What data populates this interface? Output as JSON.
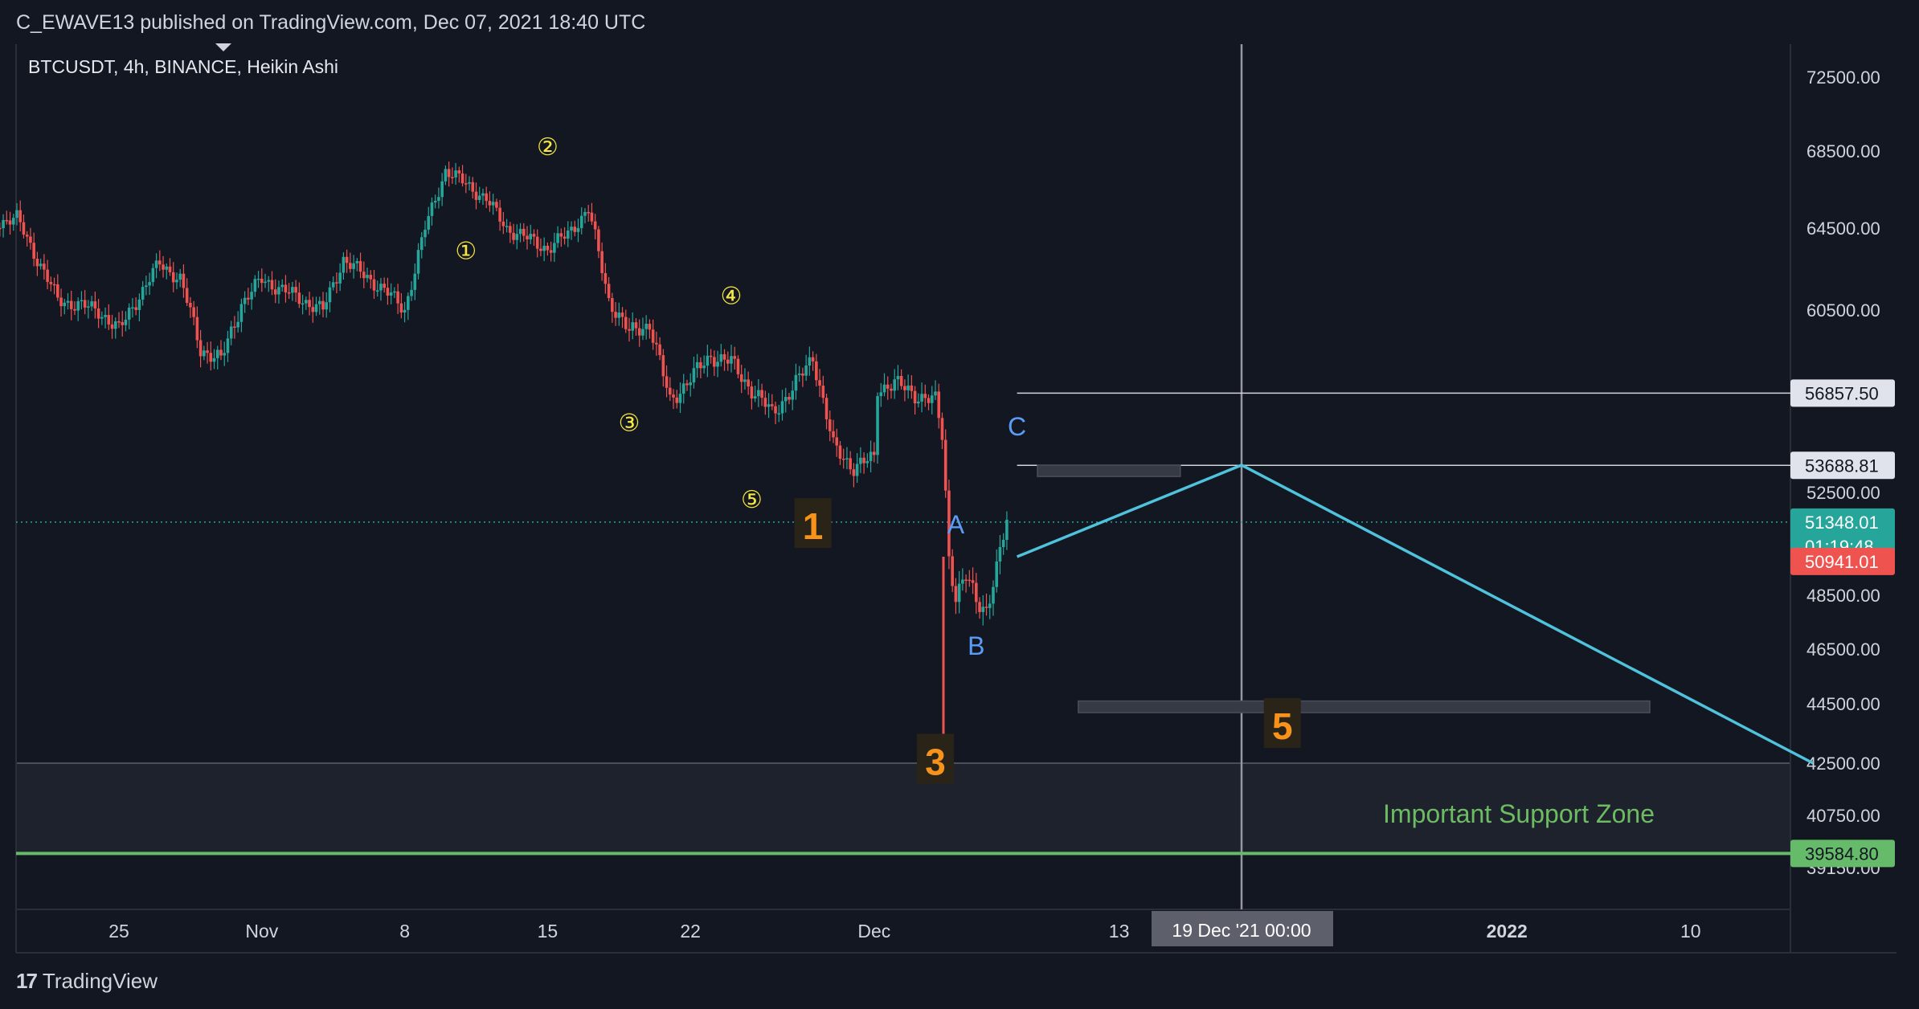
{
  "header": {
    "publisher": "C_EWAVE13 published on TradingView.com, Dec 07, 2021 18:40 UTC",
    "symbol": "BTCUSDT, 4h, BINANCE, Heikin Ashi"
  },
  "footer": {
    "logo_mark": "17",
    "logo_text": "TradingView"
  },
  "colors": {
    "background": "#131722",
    "up_candle": "#26a69a",
    "down_candle": "#ef5350",
    "projection_line": "#4fc3dc",
    "support_line": "#66bb6a",
    "wave_minor": "#f5e642",
    "wave_major": "#f7931a",
    "abc_label": "#5b9cf6"
  },
  "chart_data": {
    "type": "candlestick",
    "style": "Heikin Ashi",
    "symbol": "BTCUSDT",
    "interval": "4h",
    "exchange": "BINANCE",
    "ylim": [
      38400,
      73600
    ],
    "y_ticks": [
      "72500.00",
      "68500.00",
      "64500.00",
      "60500.00",
      "52500.00",
      "48500.00",
      "46500.00",
      "44500.00",
      "42500.00",
      "40750.00",
      "39150.00"
    ],
    "x_ticks": [
      {
        "label": "25",
        "date": "2021-10-25"
      },
      {
        "label": "Nov",
        "date": "2021-11-01"
      },
      {
        "label": "8",
        "date": "2021-11-08"
      },
      {
        "label": "15",
        "date": "2021-11-15"
      },
      {
        "label": "22",
        "date": "2021-11-22"
      },
      {
        "label": "Dec",
        "date": "2021-12-01"
      },
      {
        "label": "13",
        "date": "2021-12-13"
      },
      {
        "label": "2022",
        "date": "2022-01-01"
      },
      {
        "label": "10",
        "date": "2022-01-10"
      }
    ],
    "price_path": [
      {
        "date": "2021-10-18",
        "price": 62500
      },
      {
        "date": "2021-10-19",
        "price": 64800
      },
      {
        "date": "2021-10-20",
        "price": 65000
      },
      {
        "date": "2021-10-22",
        "price": 61000
      },
      {
        "date": "2021-10-24",
        "price": 60500
      },
      {
        "date": "2021-10-25",
        "price": 59600
      },
      {
        "date": "2021-10-27",
        "price": 62800
      },
      {
        "date": "2021-10-28",
        "price": 62000
      },
      {
        "date": "2021-10-29",
        "price": 58800
      },
      {
        "date": "2021-10-30",
        "price": 58300
      },
      {
        "date": "2021-10-31",
        "price": 60800
      },
      {
        "date": "2021-11-01",
        "price": 62000
      },
      {
        "date": "2021-11-03",
        "price": 61000
      },
      {
        "date": "2021-11-04",
        "price": 60500
      },
      {
        "date": "2021-11-05",
        "price": 63000
      },
      {
        "date": "2021-11-06",
        "price": 62200
      },
      {
        "date": "2021-11-07",
        "price": 61500
      },
      {
        "date": "2021-11-08",
        "price": 60500
      },
      {
        "date": "2021-11-09",
        "price": 64500
      },
      {
        "date": "2021-11-10",
        "price": 67500
      },
      {
        "date": "2021-11-11",
        "price": 66800
      },
      {
        "date": "2021-11-12",
        "price": 66000
      },
      {
        "date": "2021-11-13",
        "price": 64500
      },
      {
        "date": "2021-11-15",
        "price": 63500
      },
      {
        "date": "2021-11-16",
        "price": 64200
      },
      {
        "date": "2021-11-17",
        "price": 65500
      },
      {
        "date": "2021-11-18",
        "price": 61000
      },
      {
        "date": "2021-11-19",
        "price": 59500
      },
      {
        "date": "2021-11-20",
        "price": 59900
      },
      {
        "date": "2021-11-21",
        "price": 56500
      },
      {
        "date": "2021-11-22",
        "price": 57500
      },
      {
        "date": "2021-11-23",
        "price": 58500
      },
      {
        "date": "2021-11-24",
        "price": 58200
      },
      {
        "date": "2021-11-25",
        "price": 57000
      },
      {
        "date": "2021-11-26",
        "price": 56000
      },
      {
        "date": "2021-11-27",
        "price": 57000
      },
      {
        "date": "2021-11-28",
        "price": 58500
      },
      {
        "date": "2021-11-29",
        "price": 54500
      },
      {
        "date": "2021-11-30",
        "price": 53600
      },
      {
        "date": "2021-11-31",
        "price": 54000
      },
      {
        "date": "2021-12-01",
        "price": 57000
      },
      {
        "date": "2021-12-02",
        "price": 57300
      },
      {
        "date": "2021-12-03",
        "price": 56800
      },
      {
        "date": "2021-12-04",
        "price": 56500
      },
      {
        "date": "2021-12-04",
        "price": 55000
      },
      {
        "date": "2021-12-04",
        "price": 50000
      },
      {
        "date": "2021-12-05",
        "price": 48500
      },
      {
        "date": "2021-12-05",
        "price": 49200
      },
      {
        "date": "2021-12-06",
        "price": 48300
      },
      {
        "date": "2021-12-06",
        "price": 48000
      },
      {
        "date": "2021-12-07",
        "price": 49500
      },
      {
        "date": "2021-12-07",
        "price": 51348
      }
    ],
    "candle_colors": [
      "up",
      "up",
      "down",
      "down",
      "down",
      "up",
      "up",
      "down",
      "down",
      "up",
      "up",
      "down",
      "down",
      "up",
      "down",
      "down",
      "down",
      "up",
      "up",
      "down",
      "down",
      "down",
      "down",
      "up",
      "up",
      "down",
      "down",
      "up",
      "down",
      "up",
      "up",
      "down",
      "down",
      "down",
      "up",
      "up",
      "down",
      "down",
      "up",
      "up",
      "up",
      "down",
      "down",
      "down",
      "down",
      "down",
      "down",
      "up",
      "down",
      "down",
      "up",
      "up"
    ],
    "price_labels": [
      {
        "value": "56857.50",
        "price": 56857.5,
        "style": "level"
      },
      {
        "value": "53688.81",
        "price": 53688.81,
        "style": "level"
      },
      {
        "value": "51348.01",
        "countdown": "01:19:48",
        "price": 51348.01,
        "style": "current"
      },
      {
        "value": "50941.01",
        "price": 50941.01,
        "style": "open"
      },
      {
        "value": "39584.80",
        "price": 39584.8,
        "style": "support"
      }
    ],
    "horizontal_levels": [
      {
        "name": "resistance-level-1",
        "price": 56857.5,
        "from": "2021-12-08",
        "to": "2022-01-14"
      },
      {
        "name": "resistance-level-2",
        "price": 53688.81,
        "from": "2021-12-08",
        "to": "2022-01-14"
      },
      {
        "name": "support-line",
        "price": 39584.8,
        "from": "2021-10-18",
        "to": "2022-01-14"
      },
      {
        "name": "current-price-line",
        "price": 51348.01,
        "style": "dotted"
      }
    ],
    "zones": [
      {
        "name": "support-zone",
        "label": "Important Support Zone",
        "top": 42500,
        "bottom": 39584.8
      },
      {
        "name": "c-target-box",
        "top": 53700,
        "bottom": 53200,
        "from": "2021-12-09",
        "to": "2021-12-16"
      },
      {
        "name": "wave5-target-box",
        "top": 44600,
        "bottom": 44200,
        "from": "2021-12-11",
        "to": "2022-01-08"
      }
    ],
    "projection": [
      {
        "date": "2021-12-08",
        "price": 50000
      },
      {
        "date": "2021-12-19",
        "price": 53700
      },
      {
        "date": "2022-01-16",
        "price": 42500
      }
    ],
    "vertical_marker": {
      "date": "2021-12-19",
      "label": "19 Dec '21   00:00"
    },
    "wave_labels": [
      {
        "text": "①",
        "date": "2021-11-11",
        "price": 63000,
        "kind": "minor"
      },
      {
        "text": "②",
        "date": "2021-11-15",
        "price": 68300,
        "kind": "minor"
      },
      {
        "text": "③",
        "date": "2021-11-19",
        "price": 55200,
        "kind": "minor"
      },
      {
        "text": "④",
        "date": "2021-11-24",
        "price": 60800,
        "kind": "minor"
      },
      {
        "text": "⑤",
        "date": "2021-11-25",
        "price": 51900,
        "kind": "minor"
      },
      {
        "text": "1",
        "date": "2021-11-28",
        "price": 50900,
        "kind": "major"
      },
      {
        "text": "3",
        "date": "2021-12-04",
        "price": 42300,
        "kind": "major"
      },
      {
        "text": "5",
        "date": "2021-12-21",
        "price": 43500,
        "kind": "major"
      },
      {
        "text": "A",
        "date": "2021-12-05",
        "price": 50900,
        "kind": "abc"
      },
      {
        "text": "B",
        "date": "2021-12-06",
        "price": 46300,
        "kind": "abc"
      },
      {
        "text": "C",
        "date": "2021-12-08",
        "price": 55000,
        "kind": "abc"
      }
    ]
  }
}
